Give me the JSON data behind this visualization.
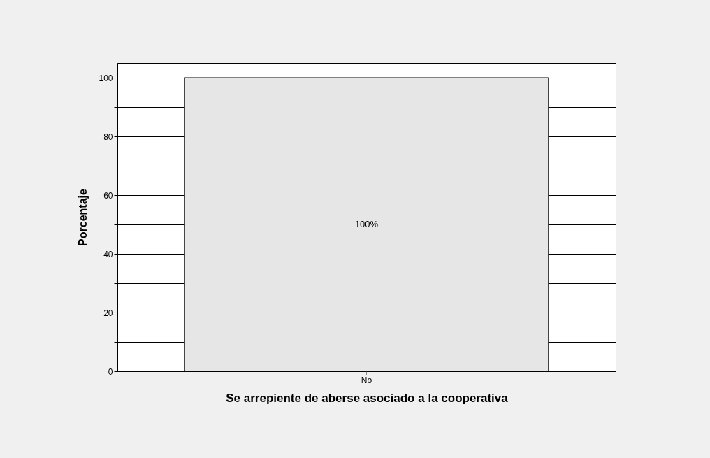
{
  "chart_data": {
    "type": "bar",
    "xlabel": "Se arrepiente de aberse asociado a la cooperativa",
    "ylabel": "Porcentaje",
    "categories": [
      "No"
    ],
    "values": [
      100
    ],
    "value_labels": [
      "100%"
    ],
    "color": "#e6e6e6",
    "ylim": [
      0,
      105
    ],
    "yticks": [
      0,
      {
        "value": 10,
        "label": null
      },
      20,
      {
        "value": 30,
        "label": null
      },
      40,
      {
        "value": 50,
        "label": null
      },
      60,
      {
        "value": 70,
        "label": null
      },
      80,
      {
        "value": 90,
        "label": null
      },
      100
    ],
    "grid": true
  }
}
